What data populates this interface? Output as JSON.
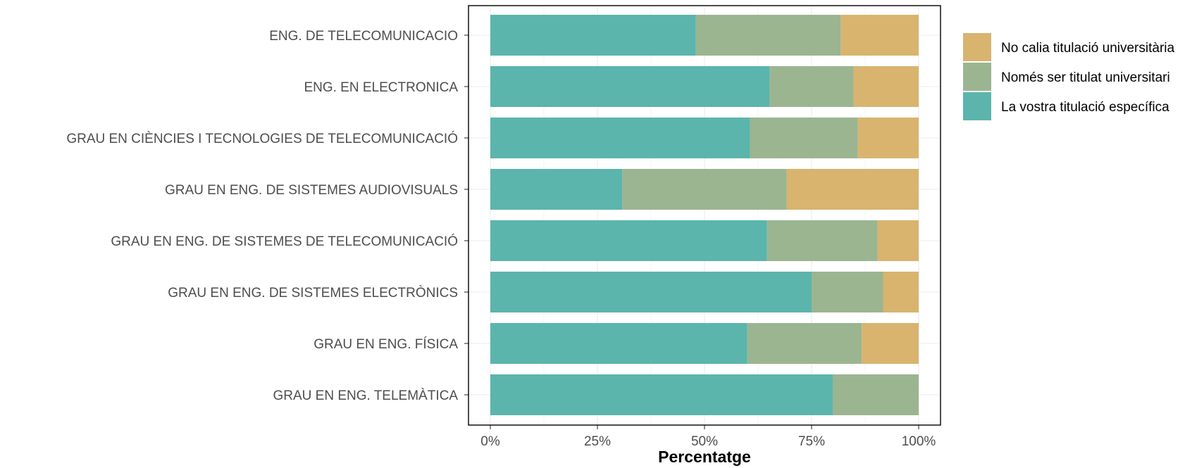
{
  "chart_data": {
    "type": "bar",
    "orientation": "horizontal",
    "stacked": true,
    "xlabel": "Percentatge",
    "ylabel": "",
    "xlim": [
      0,
      100
    ],
    "x_ticks": [
      "0%",
      "25%",
      "50%",
      "75%",
      "100%"
    ],
    "x_tick_values": [
      0,
      25,
      50,
      75,
      100
    ],
    "grid": true,
    "legend_position": "right",
    "categories": [
      "ENG. DE TELECOMUNICACIO",
      "ENG. EN ELECTRONICA",
      "GRAU EN CIÈNCIES I TECNOLOGIES DE TELECOMUNICACIÓ",
      "GRAU EN ENG. DE SISTEMES AUDIOVISUALS",
      "GRAU EN ENG. DE SISTEMES DE TELECOMUNICACIÓ",
      "GRAU EN ENG. DE SISTEMES ELECTRÒNICS",
      "GRAU EN ENG. FÍSICA",
      "GRAU EN ENG. TELEMÀTICA"
    ],
    "series": [
      {
        "name": "La vostra titulació específica",
        "color": "#5bb5ac",
        "values": [
          48,
          65.2,
          60.6,
          30.8,
          64.6,
          75,
          60,
          80
        ]
      },
      {
        "name": "Només ser titulat universitari",
        "color": "#9bb591",
        "values": [
          33.8,
          19.6,
          25.2,
          38.4,
          25.8,
          16.7,
          26.7,
          20
        ]
      },
      {
        "name": "No calia titulació universitària",
        "color": "#d8b46f",
        "values": [
          18.2,
          15.2,
          14.2,
          30.8,
          9.6,
          8.3,
          13.3,
          0
        ]
      }
    ],
    "legend_order": [
      "No calia titulació universitària",
      "Només ser titulat universitari",
      "La vostra titulació específica"
    ]
  }
}
